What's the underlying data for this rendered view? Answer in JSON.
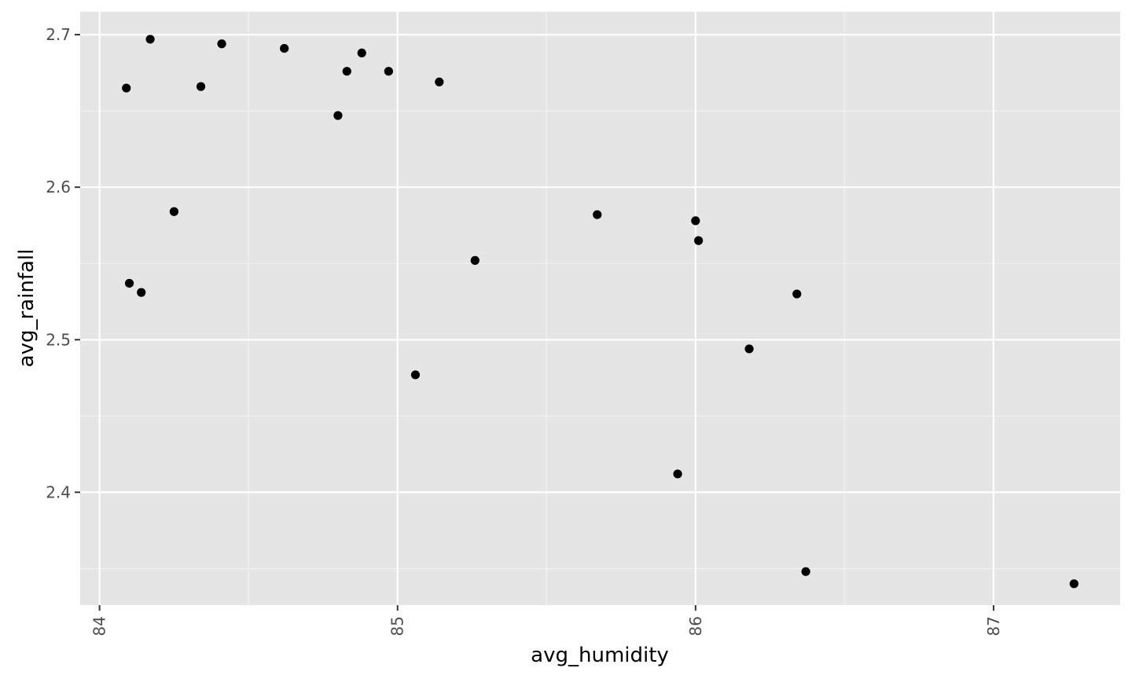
{
  "chart_data": {
    "type": "scatter",
    "xlabel": "avg_humidity",
    "ylabel": "avg_rainfall",
    "xlim": [
      83.935,
      87.425
    ],
    "ylim": [
      2.326,
      2.715
    ],
    "x_major_ticks": [
      84,
      85,
      86,
      87
    ],
    "x_minor_ticks": [
      84.5,
      85.5,
      86.5
    ],
    "y_major_ticks": [
      2.4,
      2.5,
      2.6,
      2.7
    ],
    "y_minor_ticks": [
      2.35,
      2.45,
      2.55,
      2.65
    ],
    "x_tick_labels": [
      "84",
      "85",
      "86",
      "87"
    ],
    "y_tick_labels": [
      "2.4",
      "2.5",
      "2.6",
      "2.7"
    ],
    "grid": true,
    "point_color": "#000000",
    "panel_color": "#e5e5e5",
    "points": [
      {
        "x": 84.09,
        "y": 2.665
      },
      {
        "x": 84.1,
        "y": 2.537
      },
      {
        "x": 84.14,
        "y": 2.531
      },
      {
        "x": 84.17,
        "y": 2.697
      },
      {
        "x": 84.25,
        "y": 2.584
      },
      {
        "x": 84.34,
        "y": 2.666
      },
      {
        "x": 84.41,
        "y": 2.694
      },
      {
        "x": 84.62,
        "y": 2.691
      },
      {
        "x": 84.8,
        "y": 2.647
      },
      {
        "x": 84.83,
        "y": 2.676
      },
      {
        "x": 84.88,
        "y": 2.688
      },
      {
        "x": 84.97,
        "y": 2.676
      },
      {
        "x": 85.06,
        "y": 2.477
      },
      {
        "x": 85.14,
        "y": 2.669
      },
      {
        "x": 85.26,
        "y": 2.552
      },
      {
        "x": 85.67,
        "y": 2.582
      },
      {
        "x": 85.94,
        "y": 2.412
      },
      {
        "x": 86.0,
        "y": 2.578
      },
      {
        "x": 86.01,
        "y": 2.565
      },
      {
        "x": 86.18,
        "y": 2.494
      },
      {
        "x": 86.34,
        "y": 2.53
      },
      {
        "x": 86.37,
        "y": 2.348
      },
      {
        "x": 87.27,
        "y": 2.34
      }
    ]
  }
}
